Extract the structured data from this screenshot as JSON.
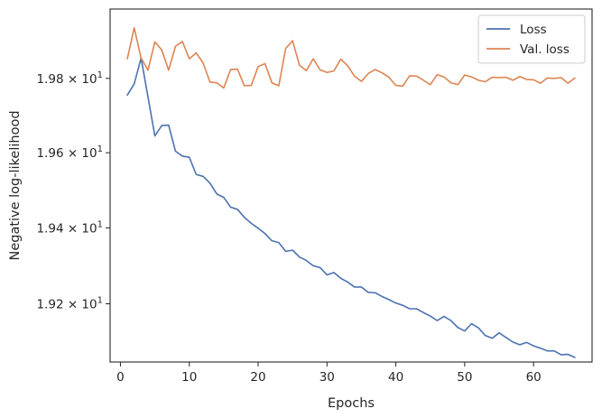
{
  "chart_data": {
    "type": "line",
    "xlabel": "Epochs",
    "ylabel": "Negative log-likelihood",
    "xlim": [
      -1.5,
      68.5
    ],
    "ylim": [
      19.048,
      19.9883
    ],
    "x_ticks": [
      0,
      10,
      20,
      30,
      40,
      50,
      60
    ],
    "y_ticks": [
      {
        "value": 19.2,
        "mantissa": "1.92",
        "base": "10",
        "exponent": "1"
      },
      {
        "value": 19.4,
        "mantissa": "1.94",
        "base": "10",
        "exponent": "1"
      },
      {
        "value": 19.6,
        "mantissa": "1.96",
        "base": "10",
        "exponent": "1"
      },
      {
        "value": 19.8,
        "mantissa": "1.98",
        "base": "10",
        "exponent": "1"
      }
    ],
    "y_scale": "log",
    "grid": false,
    "legend_position": "top-right",
    "colors": {
      "loss": "#4c72b0",
      "val_loss": "#dd8452",
      "axes": "#262626"
    },
    "series": [
      {
        "name": "Loss",
        "color": "#4c72b0",
        "x": [
          1,
          2,
          3,
          4,
          5,
          6,
          7,
          8,
          9,
          10,
          11,
          12,
          13,
          14,
          15,
          16,
          17,
          18,
          19,
          20,
          21,
          22,
          23,
          24,
          25,
          26,
          27,
          28,
          29,
          30,
          31,
          32,
          33,
          34,
          35,
          36,
          37,
          38,
          39,
          40,
          41,
          42,
          43,
          44,
          45,
          46,
          47,
          48,
          49,
          50,
          51,
          52,
          53,
          54,
          55,
          56,
          57,
          58,
          59,
          60,
          61,
          62,
          63,
          64,
          65,
          66
        ],
        "y": [
          19.755,
          19.785,
          19.855,
          19.75,
          19.645,
          19.673,
          19.674,
          19.604,
          19.591,
          19.588,
          19.542,
          19.537,
          19.519,
          19.49,
          19.481,
          19.455,
          19.449,
          19.428,
          19.412,
          19.399,
          19.385,
          19.366,
          19.361,
          19.338,
          19.341,
          19.323,
          19.314,
          19.3,
          19.295,
          19.276,
          19.282,
          19.267,
          19.257,
          19.244,
          19.244,
          19.23,
          19.229,
          19.219,
          19.211,
          19.202,
          19.196,
          19.187,
          19.187,
          19.177,
          19.168,
          19.156,
          19.167,
          19.156,
          19.138,
          19.129,
          19.148,
          19.137,
          19.117,
          19.11,
          19.124,
          19.112,
          19.1,
          19.093,
          19.099,
          19.09,
          19.084,
          19.077,
          19.077,
          19.067,
          19.068,
          19.06
        ]
      },
      {
        "name": "Val. loss",
        "color": "#dd8452",
        "x": [
          1,
          2,
          3,
          4,
          5,
          6,
          7,
          8,
          9,
          10,
          11,
          12,
          13,
          14,
          15,
          16,
          17,
          18,
          19,
          20,
          21,
          22,
          23,
          24,
          25,
          26,
          27,
          28,
          29,
          30,
          31,
          32,
          33,
          34,
          35,
          36,
          37,
          38,
          39,
          40,
          41,
          42,
          43,
          44,
          45,
          46,
          47,
          48,
          49,
          50,
          51,
          52,
          53,
          54,
          55,
          56,
          57,
          58,
          59,
          60,
          61,
          62,
          63,
          64,
          65,
          66
        ],
        "y": [
          19.853,
          19.937,
          19.855,
          19.822,
          19.899,
          19.877,
          19.822,
          19.887,
          19.9,
          19.853,
          19.869,
          19.842,
          19.79,
          19.788,
          19.774,
          19.824,
          19.825,
          19.78,
          19.781,
          19.832,
          19.84,
          19.788,
          19.78,
          19.881,
          19.902,
          19.836,
          19.821,
          19.853,
          19.823,
          19.816,
          19.82,
          19.852,
          19.834,
          19.806,
          19.792,
          19.813,
          19.824,
          19.815,
          19.803,
          19.781,
          19.779,
          19.807,
          19.806,
          19.795,
          19.783,
          19.81,
          19.804,
          19.788,
          19.783,
          19.809,
          19.804,
          19.795,
          19.791,
          19.803,
          19.802,
          19.803,
          19.795,
          19.805,
          19.797,
          19.796,
          19.787,
          19.801,
          19.8,
          19.802,
          19.787,
          19.801
        ]
      }
    ]
  }
}
